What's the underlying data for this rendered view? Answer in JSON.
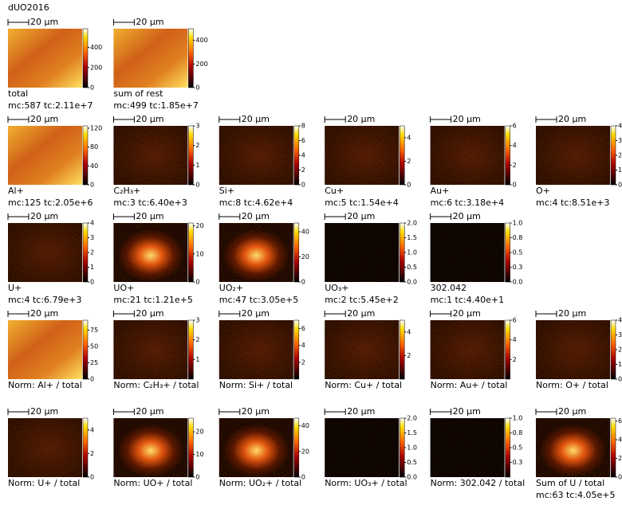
{
  "title": "dUO2016",
  "rows": [
    [
      {
        "scale_bar": "20 µm",
        "label": "total",
        "stats": "mc:587 tc:2.11e+7",
        "range": [
          0,
          587
        ],
        "ticks": [
          0,
          200,
          400
        ]
      },
      {
        "scale_bar": "20 µm",
        "label": "sum of rest",
        "stats": "mc:499 tc:1.85e+7",
        "range": [
          0,
          499
        ],
        "ticks": [
          0,
          200,
          400
        ]
      }
    ],
    [
      {
        "scale_bar": "20 µm",
        "label": "Al+",
        "stats": "mc:125 tc:2.05e+6",
        "range": [
          0,
          125
        ],
        "ticks": [
          0,
          40,
          80,
          120
        ]
      },
      {
        "scale_bar": "20 µm",
        "label": "C₂H₃+",
        "stats": "mc:3 tc:6.40e+3",
        "range": [
          0,
          3
        ],
        "ticks": [
          0,
          1,
          2,
          3
        ]
      },
      {
        "scale_bar": "20 µm",
        "label": "Si+",
        "stats": "mc:8 tc:4.62e+4",
        "range": [
          0,
          8
        ],
        "ticks": [
          0,
          2,
          4,
          6,
          8
        ]
      },
      {
        "scale_bar": "20 µm",
        "label": "Cu+",
        "stats": "mc:5 tc:1.54e+4",
        "range": [
          0,
          5
        ],
        "ticks": [
          0,
          2,
          4
        ]
      },
      {
        "scale_bar": "20 µm",
        "label": "Au+",
        "stats": "mc:6 tc:3.18e+4",
        "range": [
          0,
          6
        ],
        "ticks": [
          0,
          2,
          4,
          6
        ]
      },
      {
        "scale_bar": "20 µm",
        "label": "O+",
        "stats": "mc:4 tc:8.51e+3",
        "range": [
          0,
          4
        ],
        "ticks": [
          0,
          1,
          2,
          3,
          4
        ]
      }
    ],
    [
      {
        "scale_bar": "20 µm",
        "label": "U+",
        "stats": "mc:4 tc:6.79e+3",
        "range": [
          0,
          4
        ],
        "ticks": [
          0,
          1,
          2,
          3,
          4
        ]
      },
      {
        "scale_bar": "20 µm",
        "label": "UO+",
        "stats": "mc:21 tc:1.21e+5",
        "range": [
          0,
          21
        ],
        "ticks": [
          0,
          10,
          20
        ]
      },
      {
        "scale_bar": "20 µm",
        "label": "UO₂+",
        "stats": "mc:47 tc:3.05e+5",
        "range": [
          0,
          47
        ],
        "ticks": [
          0,
          20,
          40
        ]
      },
      {
        "scale_bar": "20 µm",
        "label": "UO₃+",
        "stats": "mc:2 tc:5.45e+2",
        "range": [
          0,
          2
        ],
        "ticks": [
          {
            "value": 0,
            "label": "0.0"
          },
          {
            "value": 0.5,
            "label": "0.5"
          },
          {
            "value": 1,
            "label": "1.0"
          },
          {
            "value": 1.5,
            "label": "1.5"
          },
          {
            "value": 2,
            "label": "2.0"
          }
        ]
      },
      {
        "scale_bar": "20 µm",
        "label": "302.042",
        "stats": "mc:1 tc:4.40e+1",
        "range": [
          0,
          1
        ],
        "ticks": [
          {
            "value": 0,
            "label": "0.0"
          },
          {
            "value": 0.25,
            "label": "0.3"
          },
          {
            "value": 0.5,
            "label": "0.5"
          },
          {
            "value": 0.75,
            "label": "0.8"
          },
          {
            "value": 1,
            "label": "1.0"
          }
        ]
      }
    ],
    [
      {
        "scale_bar": "20 µm",
        "label": "Norm: Al+ / total",
        "range": [
          0,
          90
        ],
        "ticks": [
          0,
          25,
          50,
          75
        ]
      },
      {
        "scale_bar": "20 µm",
        "label": "Norm: C₂H₃+ / total",
        "range": [
          0,
          3
        ],
        "ticks": [
          1,
          2,
          3
        ]
      },
      {
        "scale_bar": "20 µm",
        "label": "Norm: Si+ / total",
        "range": [
          0,
          7
        ],
        "ticks": [
          2,
          4,
          6
        ]
      },
      {
        "scale_bar": "20 µm",
        "label": "Norm: Cu+ / total",
        "range": [
          0,
          5
        ],
        "ticks": [
          2,
          4
        ]
      },
      {
        "scale_bar": "20 µm",
        "label": "Norm: Au+ / total",
        "range": [
          0,
          6
        ],
        "ticks": [
          2,
          4,
          6
        ]
      },
      {
        "scale_bar": "20 µm",
        "label": "Norm: O+ / total",
        "range": [
          0,
          4
        ],
        "ticks": [
          0,
          1,
          2,
          3,
          4
        ]
      }
    ],
    [
      {
        "scale_bar": "20 µm",
        "label": "Norm: U+ / total",
        "range": [
          0,
          5
        ],
        "ticks": [
          0,
          2,
          4
        ]
      },
      {
        "scale_bar": "20 µm",
        "label": "Norm: UO+ / total",
        "range": [
          0,
          26
        ],
        "ticks": [
          0,
          10,
          20
        ]
      },
      {
        "scale_bar": "20 µm",
        "label": "Norm: UO₂+ / total",
        "range": [
          0,
          46
        ],
        "ticks": [
          0,
          20,
          40
        ]
      },
      {
        "scale_bar": "20 µm",
        "label": "Norm: UO₃+ / total",
        "range": [
          0,
          2
        ],
        "ticks": [
          {
            "value": 0,
            "label": "0.0"
          },
          {
            "value": 0.5,
            "label": "0.5"
          },
          {
            "value": 1,
            "label": "1.0"
          },
          {
            "value": 1.5,
            "label": "1.5"
          },
          {
            "value": 2,
            "label": "2.0"
          }
        ]
      },
      {
        "scale_bar": "20 µm",
        "label": "Norm: 302.042 / total",
        "range": [
          0,
          1
        ],
        "ticks": [
          {
            "value": 0.25,
            "label": "0.3"
          },
          {
            "value": 0.5,
            "label": "0.5"
          },
          {
            "value": 0.75,
            "label": "0.8"
          },
          {
            "value": 1,
            "label": "1.0"
          }
        ]
      },
      {
        "scale_bar": "20 µm",
        "label": "Sum of U / total",
        "stats": "mc:63 tc:4.05e+5",
        "range": [
          0,
          63
        ],
        "ticks": [
          0,
          20,
          40,
          60
        ]
      }
    ]
  ]
}
